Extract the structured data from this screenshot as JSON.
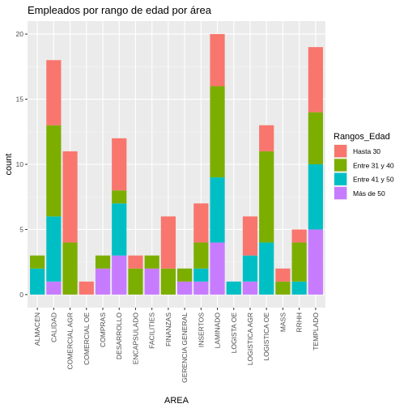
{
  "chart_data": {
    "type": "bar",
    "stacked": true,
    "title": "Empleados por rango de edad por área",
    "xlabel": "AREA",
    "ylabel": "count",
    "ylim": [
      0,
      21
    ],
    "y_ticks": [
      0,
      5,
      10,
      15,
      20
    ],
    "grid": true,
    "legend_title": "Rangos_Edad",
    "legend_position": "right",
    "categories": [
      "ALMACEN",
      "CALIDAD",
      "COMERCIAL AGR",
      "COMERCIAL OE",
      "COMPRAS",
      "DESARROLLO",
      "ENCAPSULADO",
      "FACILITIES",
      "FINANZAS",
      "GERENCIA GENERAL",
      "INSERTOS",
      "LAMINADO",
      "LOGISTA OE",
      "LOGISTICA AGR",
      "LOGISTICA OE",
      "MASS",
      "RRHH",
      "TEMPLADO"
    ],
    "series": [
      {
        "name": "Hasta 30",
        "color": "#F8766D",
        "values": [
          0,
          5,
          7,
          1,
          0,
          4,
          1,
          0,
          4,
          0,
          3,
          4,
          0,
          3,
          2,
          1,
          1,
          5
        ]
      },
      {
        "name": "Entre 31 y 40",
        "color": "#7CAE00",
        "values": [
          1,
          7,
          4,
          0,
          1,
          1,
          2,
          1,
          2,
          1,
          2,
          7,
          0,
          0,
          7,
          1,
          3,
          4
        ]
      },
      {
        "name": "Entre 41 y 50",
        "color": "#00BFC4",
        "values": [
          2,
          5,
          0,
          0,
          0,
          4,
          0,
          0,
          0,
          0,
          1,
          5,
          1,
          2,
          4,
          0,
          1,
          5
        ]
      },
      {
        "name": "Más de 50",
        "color": "#C77CFF",
        "values": [
          0,
          1,
          0,
          0,
          2,
          3,
          0,
          2,
          0,
          1,
          1,
          4,
          0,
          1,
          0,
          0,
          0,
          5
        ]
      }
    ]
  }
}
